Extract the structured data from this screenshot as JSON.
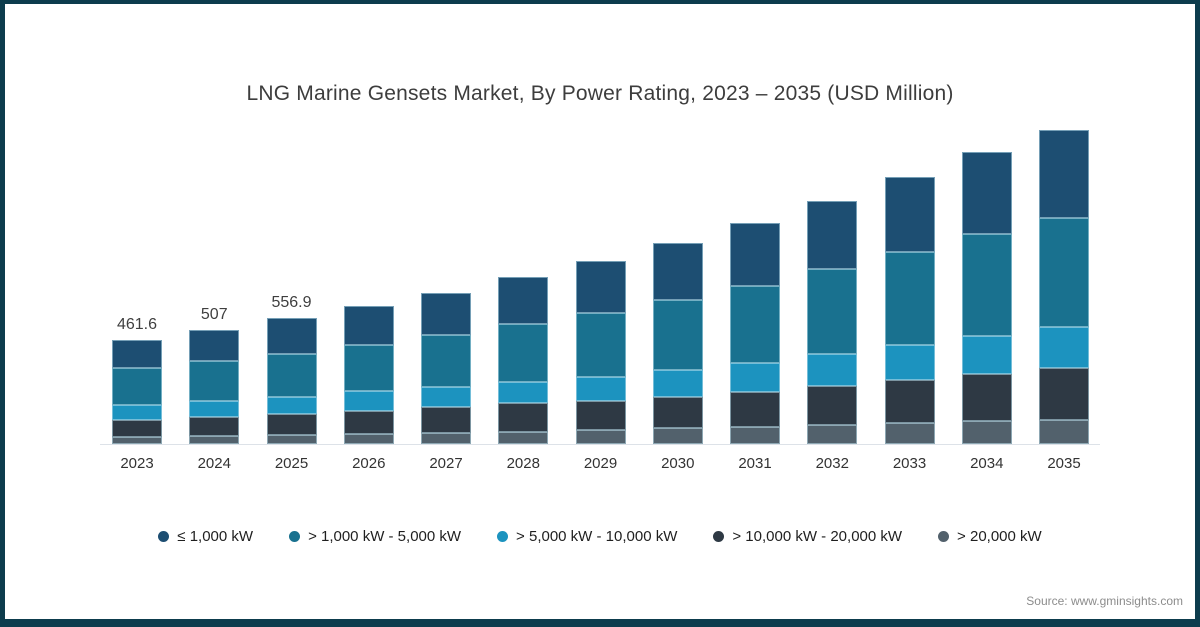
{
  "page": {
    "border_color": "#0d3c4d",
    "background": "#ffffff"
  },
  "header": {
    "title": "LNG Marine Gensets Market, By Power Rating, 2023 – 2035 (USD Million)"
  },
  "source": {
    "label": "Source: www.gminsights.com"
  },
  "chart_data": {
    "type": "bar",
    "stacked": true,
    "title": "LNG Marine Gensets Market, By Power Rating, 2023 – 2035 (USD Million)",
    "unit": "USD Million",
    "categories": [
      "2023",
      "2024",
      "2025",
      "2026",
      "2027",
      "2028",
      "2029",
      "2030",
      "2031",
      "2032",
      "2033",
      "2034",
      "2035"
    ],
    "series": [
      {
        "name": "≤ 1,000 kW",
        "color": "#1d4e72",
        "values": [
          126,
          140,
          157,
          175,
          190,
          210,
          230,
          252,
          276,
          303,
          333,
          364,
          392
        ]
      },
      {
        "name": "> 1,000 kW - 5,000 kW",
        "color": "#19718f",
        "values": [
          162,
          177,
          190,
          205,
          230,
          255,
          283,
          310,
          341,
          375,
          410,
          450,
          482
        ]
      },
      {
        "name": "> 5,000 kW - 10,000 kW",
        "color": "#1c93bf",
        "values": [
          66,
          68,
          76,
          85,
          88,
          97,
          106,
          120,
          129,
          142,
          158,
          172,
          184
        ]
      },
      {
        "name": "> 10,000 kW - 20,000 kW",
        "color": "#2e3944",
        "values": [
          75,
          85,
          95,
          105,
          115,
          125,
          132,
          141,
          158,
          172,
          188,
          206,
          230
        ]
      },
      {
        "name": "> 20,000 kW",
        "color": "#52616c",
        "values": [
          32.6,
          37,
          38.9,
          43,
          49,
          55,
          60,
          69,
          74,
          86,
          94,
          103,
          105
        ]
      }
    ],
    "totals": [
      461.6,
      507,
      556.9,
      613,
      672,
      742,
      811,
      892,
      978,
      1078,
      1183,
      1295,
      1393
    ],
    "value_labels": [
      "461.6",
      "507",
      "556.9",
      "",
      "",
      "",
      "",
      "",
      "",
      "",
      "",
      "",
      ""
    ],
    "y_axis_visible": false,
    "ylim": [
      0,
      1420
    ],
    "grid": false,
    "legend_position": "bottom"
  }
}
